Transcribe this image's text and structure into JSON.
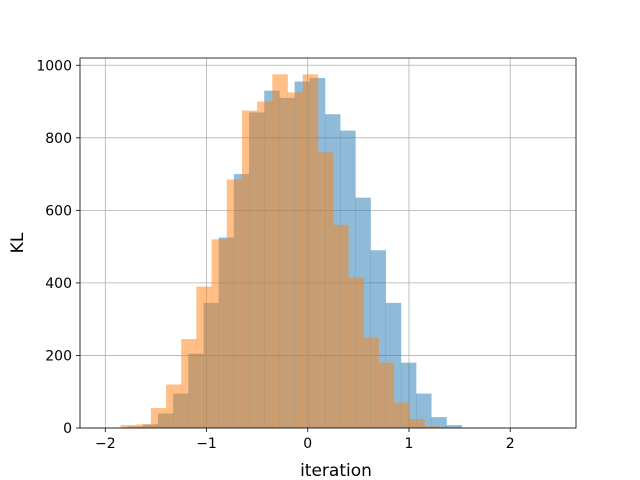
{
  "chart_data": {
    "type": "histogram",
    "xlabel": "iteration",
    "ylabel": "KL",
    "xlim": [
      -2.25,
      2.65
    ],
    "ylim": [
      0,
      1020
    ],
    "xticks": [
      -2,
      -1,
      0,
      1,
      2
    ],
    "xtick_labels": [
      "−2",
      "−1",
      "0",
      "1",
      "2"
    ],
    "yticks": [
      0,
      200,
      400,
      600,
      800,
      1000
    ],
    "ytick_labels": [
      "0",
      "200",
      "400",
      "600",
      "800",
      "1000"
    ],
    "grid": true,
    "legend": "none",
    "series": [
      {
        "color": "#1f77b4",
        "opacity": 0.5,
        "bin_start": -1.93,
        "bin_width": 0.15,
        "values": [
          1,
          4,
          10,
          40,
          95,
          205,
          345,
          525,
          700,
          870,
          930,
          910,
          955,
          965,
          865,
          820,
          635,
          490,
          345,
          180,
          95,
          30,
          8
        ]
      },
      {
        "color": "#ff7f0e",
        "opacity": 0.5,
        "bin_start": -1.85,
        "bin_width": 0.15,
        "values": [
          8,
          10,
          55,
          120,
          245,
          390,
          520,
          685,
          875,
          900,
          975,
          925,
          975,
          760,
          560,
          415,
          250,
          180,
          70,
          25,
          5
        ]
      }
    ]
  }
}
